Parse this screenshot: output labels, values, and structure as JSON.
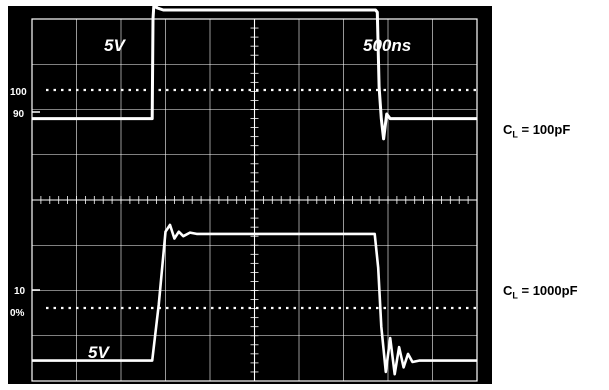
{
  "chart_data": [
    {
      "type": "line",
      "title": "",
      "xlabel": "",
      "ylabel": "",
      "grid": true,
      "grid_divisions": {
        "x": 10,
        "y": 8
      },
      "annotations": {
        "volts_per_div": "5V",
        "time_per_div": "500ns",
        "ref_level_labels": [
          "100",
          "90"
        ],
        "load_label": "C",
        "load_subscript": "L",
        "load_value": " = 100pF"
      },
      "x_unit": "div",
      "y_unit": "div",
      "series": [
        {
          "x": [
            0,
            2.7,
            2.72,
            2.75,
            2.8,
            2.95,
            3.2,
            7.72,
            7.76,
            7.8,
            7.85,
            7.9,
            7.97,
            8.05,
            8.2,
            10
          ],
          "y": [
            5.8,
            5.8,
            8.0,
            8.5,
            8.25,
            8.2,
            8.2,
            8.2,
            8.15,
            6.5,
            5.8,
            5.35,
            5.9,
            5.8,
            5.8,
            5.8
          ]
        }
      ]
    },
    {
      "type": "line",
      "title": "",
      "xlabel": "",
      "ylabel": "",
      "grid": true,
      "grid_divisions": {
        "x": 10,
        "y": 8
      },
      "annotations": {
        "volts_per_div": "5V",
        "ref_level_labels": [
          "10",
          "0%"
        ],
        "load_label": "C",
        "load_subscript": "L",
        "load_value": " = 1000pF"
      },
      "x_unit": "div",
      "y_unit": "div",
      "series": [
        {
          "x": [
            0,
            2.7,
            2.85,
            3.0,
            3.1,
            3.2,
            3.3,
            3.4,
            3.55,
            3.7,
            4.0,
            7.7,
            7.78,
            7.85,
            7.95,
            8.05,
            8.15,
            8.25,
            8.35,
            8.45,
            8.55,
            8.7,
            10
          ],
          "y": [
            0.45,
            0.45,
            1.7,
            3.3,
            3.45,
            3.15,
            3.3,
            3.2,
            3.28,
            3.25,
            3.25,
            3.25,
            2.5,
            1.2,
            0.2,
            0.95,
            0.15,
            0.75,
            0.3,
            0.6,
            0.42,
            0.45,
            0.45
          ]
        }
      ]
    }
  ]
}
